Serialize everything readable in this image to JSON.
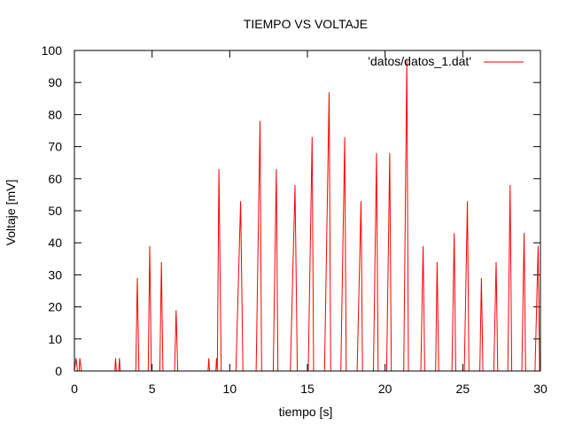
{
  "chart_data": {
    "type": "line",
    "title": "TIEMPO VS VOLTAJE",
    "xlabel": "tiempo [s]",
    "ylabel": "Voltaje [mV]",
    "xlim": [
      0,
      30
    ],
    "ylim": [
      0,
      100
    ],
    "xticks": [
      0,
      5,
      10,
      15,
      20,
      25,
      30
    ],
    "yticks": [
      0,
      10,
      20,
      30,
      40,
      50,
      60,
      70,
      80,
      90,
      100
    ],
    "grid": false,
    "legend_position": "top-right",
    "series": [
      {
        "name": "'datos/datos_1.dat'",
        "color": "#ff0000",
        "x": [
          0.0,
          0.1,
          0.2,
          0.3,
          0.35,
          0.45,
          2.6,
          2.65,
          2.7,
          2.85,
          2.9,
          2.95,
          3.95,
          4.05,
          4.15,
          4.25,
          4.75,
          4.85,
          4.95,
          5.05,
          5.5,
          5.6,
          5.7,
          5.8,
          6.45,
          6.55,
          6.65,
          6.75,
          8.6,
          8.65,
          8.7,
          9.1,
          9.15,
          9.2,
          9.3,
          9.45,
          9.55,
          9.75,
          10.4,
          10.7,
          10.85,
          11.1,
          11.7,
          11.95,
          12.05,
          12.3,
          12.8,
          13.0,
          13.1,
          13.3,
          13.9,
          14.2,
          14.35,
          14.6,
          15.05,
          15.3,
          15.4,
          15.65,
          16.1,
          16.4,
          16.5,
          16.75,
          17.15,
          17.4,
          17.5,
          17.75,
          18.2,
          18.45,
          18.55,
          18.8,
          19.25,
          19.45,
          19.55,
          19.8,
          20.1,
          20.3,
          20.4,
          20.6,
          21.2,
          21.4,
          21.5,
          21.75,
          22.3,
          22.45,
          22.55,
          22.75,
          23.25,
          23.35,
          23.45,
          23.6,
          24.3,
          24.45,
          24.55,
          24.7,
          25.1,
          25.3,
          25.4,
          25.6,
          26.1,
          26.2,
          26.3,
          26.5,
          27.0,
          27.15,
          27.25,
          27.4,
          27.9,
          28.05,
          28.15,
          28.35,
          28.8,
          28.95,
          29.05,
          29.2,
          29.65,
          29.85,
          29.95,
          30.0
        ],
        "y": [
          0,
          4,
          0,
          0,
          4,
          0,
          0,
          4,
          0,
          0,
          4,
          0,
          0,
          29,
          0,
          0,
          0,
          39,
          0,
          0,
          0,
          34,
          0,
          0,
          0,
          19,
          0,
          0,
          0,
          4,
          0,
          0,
          4,
          0,
          63,
          0,
          0,
          0,
          0,
          53,
          0,
          0,
          0,
          78,
          0,
          0,
          0,
          63,
          0,
          0,
          0,
          58,
          0,
          0,
          0,
          73,
          0,
          0,
          0,
          87,
          0,
          0,
          0,
          73,
          0,
          0,
          0,
          53,
          0,
          0,
          0,
          68,
          0,
          0,
          0,
          68,
          0,
          0,
          0,
          97,
          0,
          0,
          0,
          39,
          0,
          0,
          0,
          34,
          0,
          0,
          0,
          43,
          0,
          0,
          0,
          53,
          0,
          0,
          0,
          29,
          0,
          0,
          0,
          34,
          0,
          0,
          0,
          58,
          0,
          0,
          0,
          43,
          0,
          0,
          0,
          39,
          0,
          0
        ]
      }
    ]
  }
}
